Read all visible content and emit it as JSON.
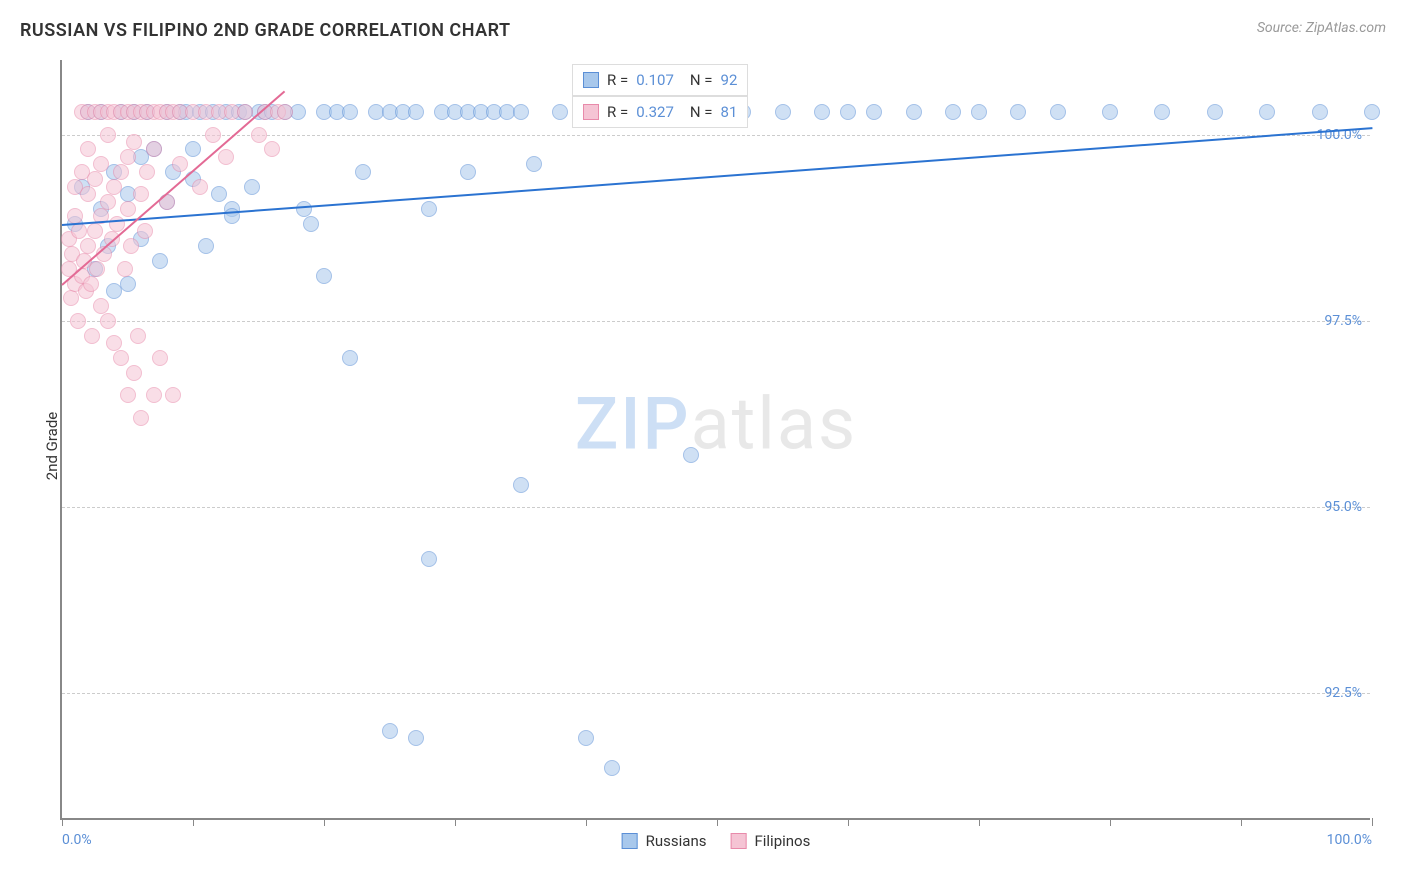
{
  "title": "RUSSIAN VS FILIPINO 2ND GRADE CORRELATION CHART",
  "source": "Source: ZipAtlas.com",
  "ylabel": "2nd Grade",
  "watermark": {
    "zip": "ZIP",
    "atlas": "atlas"
  },
  "chart": {
    "type": "scatter",
    "xlim": [
      0,
      100
    ],
    "ylim": [
      90.8,
      101.0
    ],
    "xtick_positions": [
      0,
      10,
      20,
      30,
      40,
      50,
      60,
      70,
      80,
      90,
      100
    ],
    "xtick_labels": {
      "0": "0.0%",
      "100": "100.0%"
    },
    "ytick_positions": [
      92.5,
      95.0,
      97.5,
      100.0
    ],
    "ytick_labels": [
      "92.5%",
      "95.0%",
      "97.5%",
      "100.0%"
    ],
    "grid_color": "#cccccc",
    "axis_color": "#888888",
    "tick_color": "#5b8fd6",
    "background_color": "#ffffff",
    "marker_size": 16,
    "marker_opacity": 0.55,
    "series": [
      {
        "name": "Russians",
        "fill_color": "#a8c8ec",
        "stroke_color": "#5b8fd6",
        "trend_color": "#2b73d1",
        "R": "0.107",
        "N": "92",
        "trend": {
          "x1": 0,
          "y1": 98.8,
          "x2": 100,
          "y2": 100.1
        },
        "points": [
          [
            1,
            98.8
          ],
          [
            1.5,
            99.3
          ],
          [
            2,
            100.3
          ],
          [
            2.5,
            98.2
          ],
          [
            3,
            99.0
          ],
          [
            3,
            100.3
          ],
          [
            3.5,
            98.5
          ],
          [
            4,
            97.9
          ],
          [
            4,
            99.5
          ],
          [
            4.5,
            100.3
          ],
          [
            5,
            99.2
          ],
          [
            5,
            98.0
          ],
          [
            5.5,
            100.3
          ],
          [
            6,
            99.7
          ],
          [
            6,
            98.6
          ],
          [
            6.5,
            100.3
          ],
          [
            7,
            99.8
          ],
          [
            7.5,
            98.3
          ],
          [
            8,
            100.3
          ],
          [
            8,
            99.1
          ],
          [
            8.5,
            99.5
          ],
          [
            9,
            100.3
          ],
          [
            9.5,
            100.3
          ],
          [
            10,
            99.4
          ],
          [
            10,
            99.8
          ],
          [
            10.5,
            100.3
          ],
          [
            11,
            98.5
          ],
          [
            11.5,
            100.3
          ],
          [
            12,
            99.2
          ],
          [
            12.5,
            100.3
          ],
          [
            13,
            99.0
          ],
          [
            13,
            98.9
          ],
          [
            13.5,
            100.3
          ],
          [
            14,
            100.3
          ],
          [
            14.5,
            99.3
          ],
          [
            15,
            100.3
          ],
          [
            15.5,
            100.3
          ],
          [
            16,
            100.3
          ],
          [
            17,
            100.3
          ],
          [
            18,
            100.3
          ],
          [
            18.5,
            99.0
          ],
          [
            19,
            98.8
          ],
          [
            20,
            100.3
          ],
          [
            20,
            98.1
          ],
          [
            21,
            100.3
          ],
          [
            22,
            100.3
          ],
          [
            22,
            97.0
          ],
          [
            23,
            99.5
          ],
          [
            24,
            100.3
          ],
          [
            25,
            100.3
          ],
          [
            25,
            92.0
          ],
          [
            26,
            100.3
          ],
          [
            27,
            100.3
          ],
          [
            27,
            91.9
          ],
          [
            28,
            99.0
          ],
          [
            28,
            94.3
          ],
          [
            29,
            100.3
          ],
          [
            30,
            100.3
          ],
          [
            31,
            100.3
          ],
          [
            31,
            99.5
          ],
          [
            32,
            100.3
          ],
          [
            33,
            100.3
          ],
          [
            34,
            100.3
          ],
          [
            35,
            100.3
          ],
          [
            35,
            95.3
          ],
          [
            36,
            99.6
          ],
          [
            38,
            100.3
          ],
          [
            40,
            100.3
          ],
          [
            40,
            91.9
          ],
          [
            42,
            100.3
          ],
          [
            42,
            91.5
          ],
          [
            44,
            100.3
          ],
          [
            45,
            100.3
          ],
          [
            48,
            100.3
          ],
          [
            48,
            95.7
          ],
          [
            50,
            100.3
          ],
          [
            52,
            100.3
          ],
          [
            55,
            100.3
          ],
          [
            58,
            100.3
          ],
          [
            60,
            100.3
          ],
          [
            62,
            100.3
          ],
          [
            65,
            100.3
          ],
          [
            68,
            100.3
          ],
          [
            70,
            100.3
          ],
          [
            73,
            100.3
          ],
          [
            76,
            100.3
          ],
          [
            80,
            100.3
          ],
          [
            84,
            100.3
          ],
          [
            88,
            100.3
          ],
          [
            92,
            100.3
          ],
          [
            96,
            100.3
          ],
          [
            100,
            100.3
          ]
        ]
      },
      {
        "name": "Filipinos",
        "fill_color": "#f5c4d4",
        "stroke_color": "#e88aaa",
        "trend_color": "#e36a95",
        "R": "0.327",
        "N": "81",
        "trend": {
          "x1": 0,
          "y1": 98.0,
          "x2": 17,
          "y2": 100.6
        },
        "points": [
          [
            0.5,
            98.2
          ],
          [
            0.5,
            98.6
          ],
          [
            0.7,
            97.8
          ],
          [
            0.8,
            98.4
          ],
          [
            1,
            98.0
          ],
          [
            1,
            98.9
          ],
          [
            1,
            99.3
          ],
          [
            1.2,
            97.5
          ],
          [
            1.3,
            98.7
          ],
          [
            1.5,
            98.1
          ],
          [
            1.5,
            99.5
          ],
          [
            1.5,
            100.3
          ],
          [
            1.7,
            98.3
          ],
          [
            1.8,
            97.9
          ],
          [
            2,
            98.5
          ],
          [
            2,
            99.2
          ],
          [
            2,
            99.8
          ],
          [
            2,
            100.3
          ],
          [
            2.2,
            98.0
          ],
          [
            2.3,
            97.3
          ],
          [
            2.5,
            98.7
          ],
          [
            2.5,
            99.4
          ],
          [
            2.5,
            100.3
          ],
          [
            2.7,
            98.2
          ],
          [
            3,
            97.7
          ],
          [
            3,
            98.9
          ],
          [
            3,
            99.6
          ],
          [
            3,
            100.3
          ],
          [
            3.2,
            98.4
          ],
          [
            3.5,
            97.5
          ],
          [
            3.5,
            99.1
          ],
          [
            3.5,
            100.0
          ],
          [
            3.5,
            100.3
          ],
          [
            3.8,
            98.6
          ],
          [
            4,
            97.2
          ],
          [
            4,
            99.3
          ],
          [
            4,
            100.3
          ],
          [
            4.2,
            98.8
          ],
          [
            4.5,
            97.0
          ],
          [
            4.5,
            99.5
          ],
          [
            4.5,
            100.3
          ],
          [
            4.8,
            98.2
          ],
          [
            5,
            96.5
          ],
          [
            5,
            99.0
          ],
          [
            5,
            99.7
          ],
          [
            5,
            100.3
          ],
          [
            5.3,
            98.5
          ],
          [
            5.5,
            96.8
          ],
          [
            5.5,
            99.9
          ],
          [
            5.5,
            100.3
          ],
          [
            5.8,
            97.3
          ],
          [
            6,
            99.2
          ],
          [
            6,
            100.3
          ],
          [
            6,
            96.2
          ],
          [
            6.3,
            98.7
          ],
          [
            6.5,
            99.5
          ],
          [
            6.5,
            100.3
          ],
          [
            7,
            96.5
          ],
          [
            7,
            99.8
          ],
          [
            7,
            100.3
          ],
          [
            7.5,
            97.0
          ],
          [
            7.5,
            100.3
          ],
          [
            8,
            99.1
          ],
          [
            8,
            100.3
          ],
          [
            8.5,
            96.5
          ],
          [
            8.5,
            100.3
          ],
          [
            9,
            99.6
          ],
          [
            9,
            100.3
          ],
          [
            10,
            100.3
          ],
          [
            10.5,
            99.3
          ],
          [
            11,
            100.3
          ],
          [
            11.5,
            100.0
          ],
          [
            12,
            100.3
          ],
          [
            12.5,
            99.7
          ],
          [
            13,
            100.3
          ],
          [
            14,
            100.3
          ],
          [
            15,
            100.0
          ],
          [
            15.5,
            100.3
          ],
          [
            16,
            99.8
          ],
          [
            16.5,
            100.3
          ],
          [
            17,
            100.3
          ]
        ]
      }
    ]
  },
  "legend": [
    {
      "label": "Russians",
      "fill": "#a8c8ec",
      "stroke": "#5b8fd6"
    },
    {
      "label": "Filipinos",
      "fill": "#f5c4d4",
      "stroke": "#e88aaa"
    }
  ]
}
